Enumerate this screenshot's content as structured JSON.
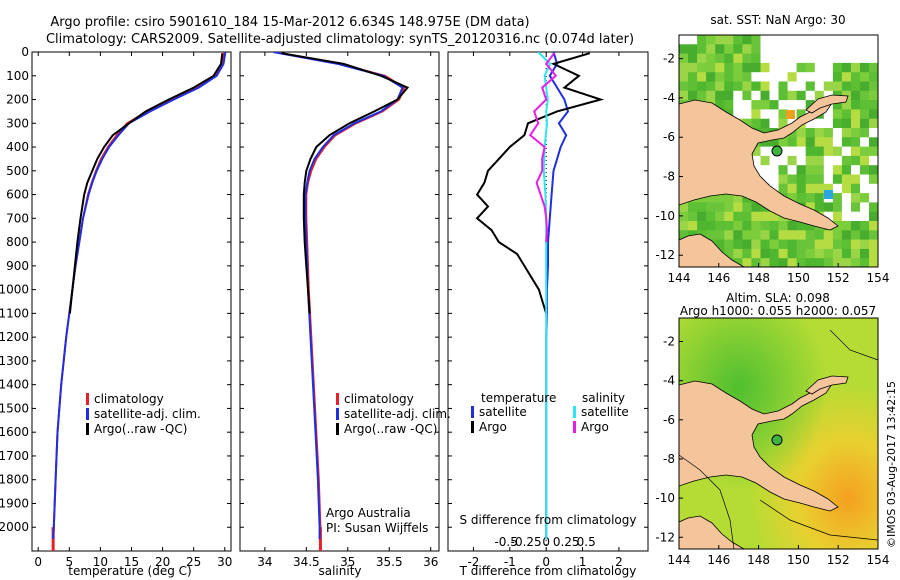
{
  "header": {
    "title_line1": "Argo profile: csiro 5901610_184 15-Mar-2012 6.634S 148.975E (DM data)",
    "title_line2": "Climatology: CARS2009. Satellite-adjusted climatology: synTS_20120316.nc (0.074d later)"
  },
  "colors": {
    "climatology": "#e8202a",
    "satellite": "#1f2fe0",
    "argo": "#000000",
    "sat_salinity": "#2fe6f0",
    "argo_salinity": "#e61fe6",
    "land": "#f4c49b"
  },
  "chart_data": [
    {
      "type": "line",
      "id": "temperature",
      "xlabel": "temperature (deg C)",
      "xlim": [
        -1,
        31
      ],
      "ylim": [
        2100,
        0
      ],
      "xticks": [
        0,
        5,
        10,
        15,
        20,
        25,
        30
      ],
      "yticks": [
        0,
        100,
        200,
        300,
        400,
        500,
        600,
        700,
        800,
        900,
        1000,
        1100,
        1200,
        1300,
        1400,
        1500,
        1600,
        1700,
        1800,
        1900,
        2000
      ],
      "legend": [
        "climatology",
        "satellite-adj. clim.",
        "Argo(..raw -QC)"
      ],
      "series": [
        {
          "name": "climatology",
          "color": "#e8202a",
          "depth": [
            0,
            50,
            100,
            150,
            200,
            250,
            300,
            350,
            400,
            450,
            500,
            550,
            600,
            700,
            800,
            900,
            1000,
            1200,
            1400,
            1600,
            1800,
            2000,
            2050
          ],
          "values": [
            29.9,
            29.6,
            28.5,
            25.5,
            21.5,
            17.5,
            14.3,
            12.6,
            11.2,
            10.1,
            9.3,
            8.6,
            8.0,
            7.2,
            6.6,
            6.0,
            5.5,
            4.5,
            3.7,
            3.1,
            2.8,
            2.5,
            2.4
          ]
        },
        {
          "name": "satellite-adj. clim.",
          "color": "#1f2fe0",
          "depth": [
            0,
            50,
            100,
            150,
            200,
            250,
            300,
            350,
            400,
            450,
            500,
            550,
            600,
            700,
            800,
            900,
            1000,
            1200,
            1400,
            1600,
            1800,
            2000,
            2050
          ],
          "values": [
            30.1,
            29.8,
            28.7,
            25.8,
            21.8,
            18.0,
            14.6,
            12.9,
            11.4,
            10.3,
            9.4,
            8.7,
            8.1,
            7.2,
            6.6,
            6.0,
            5.5,
            4.5,
            3.7,
            3.1,
            2.8,
            2.5,
            2.4
          ]
        },
        {
          "name": "Argo(..raw -QC)",
          "color": "#000000",
          "depth": [
            5,
            50,
            100,
            150,
            200,
            250,
            300,
            350,
            400,
            450,
            500,
            550,
            600,
            700,
            800,
            900,
            1000,
            1100
          ],
          "values": [
            29.6,
            29.4,
            28.2,
            25.0,
            21.0,
            17.3,
            14.6,
            12.0,
            10.6,
            9.5,
            8.7,
            7.9,
            7.4,
            6.8,
            6.3,
            5.9,
            5.5,
            5.1
          ]
        }
      ]
    },
    {
      "type": "line",
      "id": "salinity",
      "xlabel": "salinity",
      "xlim": [
        33.7,
        36.1
      ],
      "ylim": [
        2100,
        0
      ],
      "xticks": [
        34,
        34.5,
        35,
        35.5,
        36
      ],
      "legend": [
        "climatology",
        "satellite-adj. clim.",
        "Argo(..raw -QC)"
      ],
      "annotation": [
        "Argo Australia",
        "PI: Susan Wijffels"
      ],
      "series": [
        {
          "name": "climatology",
          "color": "#e8202a",
          "depth": [
            0,
            50,
            100,
            150,
            200,
            250,
            300,
            350,
            400,
            450,
            500,
            550,
            600,
            700,
            800,
            900,
            1000,
            1200,
            1400,
            1600,
            1800,
            2000,
            2050
          ],
          "values": [
            34.12,
            34.9,
            35.45,
            35.68,
            35.62,
            35.42,
            35.1,
            34.85,
            34.72,
            34.62,
            34.56,
            34.52,
            34.5,
            34.5,
            34.51,
            34.52,
            34.53,
            34.56,
            34.59,
            34.62,
            34.65,
            34.67,
            34.67
          ]
        },
        {
          "name": "satellite-adj. clim.",
          "color": "#1f2fe0",
          "depth": [
            0,
            50,
            100,
            150,
            200,
            250,
            300,
            350,
            400,
            450,
            500,
            550,
            600,
            700,
            800,
            900,
            1000,
            1200,
            1400,
            1600,
            1800,
            2000,
            2050
          ],
          "values": [
            34.1,
            34.88,
            35.43,
            35.66,
            35.6,
            35.4,
            35.08,
            34.83,
            34.7,
            34.6,
            34.54,
            34.51,
            34.49,
            34.49,
            34.5,
            34.51,
            34.52,
            34.55,
            34.58,
            34.61,
            34.64,
            34.66,
            34.66
          ]
        },
        {
          "name": "Argo(..raw -QC)",
          "color": "#000000",
          "depth": [
            5,
            50,
            100,
            150,
            200,
            250,
            300,
            350,
            400,
            450,
            500,
            550,
            600,
            700,
            800,
            900,
            1000,
            1100
          ],
          "values": [
            34.2,
            34.95,
            35.4,
            35.72,
            35.6,
            35.32,
            35.02,
            34.78,
            34.62,
            34.55,
            34.5,
            34.48,
            34.47,
            34.47,
            34.48,
            34.5,
            34.52,
            34.54
          ]
        }
      ]
    },
    {
      "type": "line",
      "id": "difference",
      "xlabel": "T difference from climatology",
      "xlabel_top": "S difference from climatology",
      "xlim": [
        -2.7,
        2.8
      ],
      "ylim": [
        2100,
        0
      ],
      "xticks": [
        -2,
        -1,
        0,
        1,
        2
      ],
      "xticks_top": [
        -0.5,
        -0.25,
        0,
        0.25,
        0.5
      ],
      "legend_temperature": [
        "temperature",
        "satellite",
        "Argo"
      ],
      "legend_salinity": [
        "salinity",
        "satellite",
        "Argo"
      ],
      "series": [
        {
          "name": "temperature satellite",
          "color": "#1f2fe0",
          "depth": [
            0,
            50,
            100,
            150,
            200,
            250,
            300,
            350,
            400,
            450,
            500,
            600,
            700,
            800,
            900,
            1000,
            1100,
            1200,
            1400,
            1600,
            1800,
            2000,
            2050
          ],
          "values": [
            0.2,
            0.3,
            0.1,
            0.3,
            0.5,
            0.6,
            0.35,
            0.55,
            0.4,
            0.3,
            0.2,
            0.15,
            0.1,
            0.05,
            0.05,
            0.02,
            0.02,
            0.0,
            0.0,
            0.0,
            0.0,
            0.0,
            0.0
          ]
        },
        {
          "name": "temperature Argo",
          "color": "#000000",
          "depth": [
            5,
            50,
            100,
            150,
            200,
            250,
            300,
            350,
            400,
            450,
            500,
            550,
            600,
            650,
            700,
            750,
            800,
            850,
            900,
            950,
            1000,
            1050,
            1100
          ],
          "values": [
            1.2,
            0.2,
            0.9,
            0.5,
            1.5,
            0.3,
            -0.5,
            -0.6,
            -1.0,
            -1.3,
            -1.6,
            -1.7,
            -1.9,
            -1.6,
            -1.9,
            -1.5,
            -1.3,
            -0.8,
            -0.6,
            -0.4,
            -0.2,
            -0.1,
            0.0
          ]
        },
        {
          "name": "salinity satellite",
          "color": "#2fe6f0",
          "depth": [
            0,
            50,
            100,
            150,
            200,
            250,
            300,
            400,
            500,
            600,
            700,
            800,
            1000,
            1200,
            1400,
            1600,
            1800,
            2000,
            2050
          ],
          "values": [
            -0.1,
            0.05,
            -0.02,
            0.0,
            0.02,
            0.0,
            0.01,
            -0.02,
            -0.03,
            -0.01,
            0.0,
            0.0,
            0.0,
            0.0,
            0.0,
            0.0,
            0.0,
            0.0,
            0.0
          ]
        },
        {
          "name": "salinity Argo",
          "color": "#e61fe6",
          "depth": [
            5,
            50,
            100,
            150,
            200,
            250,
            300,
            350,
            400,
            450,
            500,
            550,
            600,
            650,
            700,
            750,
            800
          ],
          "values": [
            0.1,
            0.0,
            0.12,
            -0.05,
            0.0,
            -0.15,
            -0.1,
            -0.2,
            -0.02,
            -0.05,
            -0.05,
            -0.12,
            -0.07,
            -0.02,
            0.0,
            0.01,
            0.0
          ]
        }
      ]
    }
  ],
  "maps": {
    "sst": {
      "title": "sat. SST: NaN Argo: 30",
      "xticks": [
        "144",
        "146",
        "148",
        "150",
        "152",
        "154"
      ],
      "yticks": [
        "-2",
        "-4",
        "-6",
        "-8",
        "-10",
        "-12"
      ],
      "argo_lon": 148.975,
      "argo_lat": -6.634
    },
    "sla": {
      "title_line1": "Altim. SLA: 0.098",
      "title_line2": "Argo h1000: 0.055 h2000: 0.057",
      "xticks": [
        "144",
        "146",
        "148",
        "150",
        "152",
        "154"
      ],
      "yticks": [
        "-2",
        "-4",
        "-6",
        "-8",
        "-10",
        "-12"
      ],
      "argo_lon": 148.975,
      "argo_lat": -6.634
    },
    "bounds": {
      "lon": [
        144,
        154
      ],
      "lat": [
        -12.6,
        -0.8
      ]
    }
  },
  "footer": {
    "stamp": "©IMOS 03-Aug-2017 13:42:15"
  }
}
